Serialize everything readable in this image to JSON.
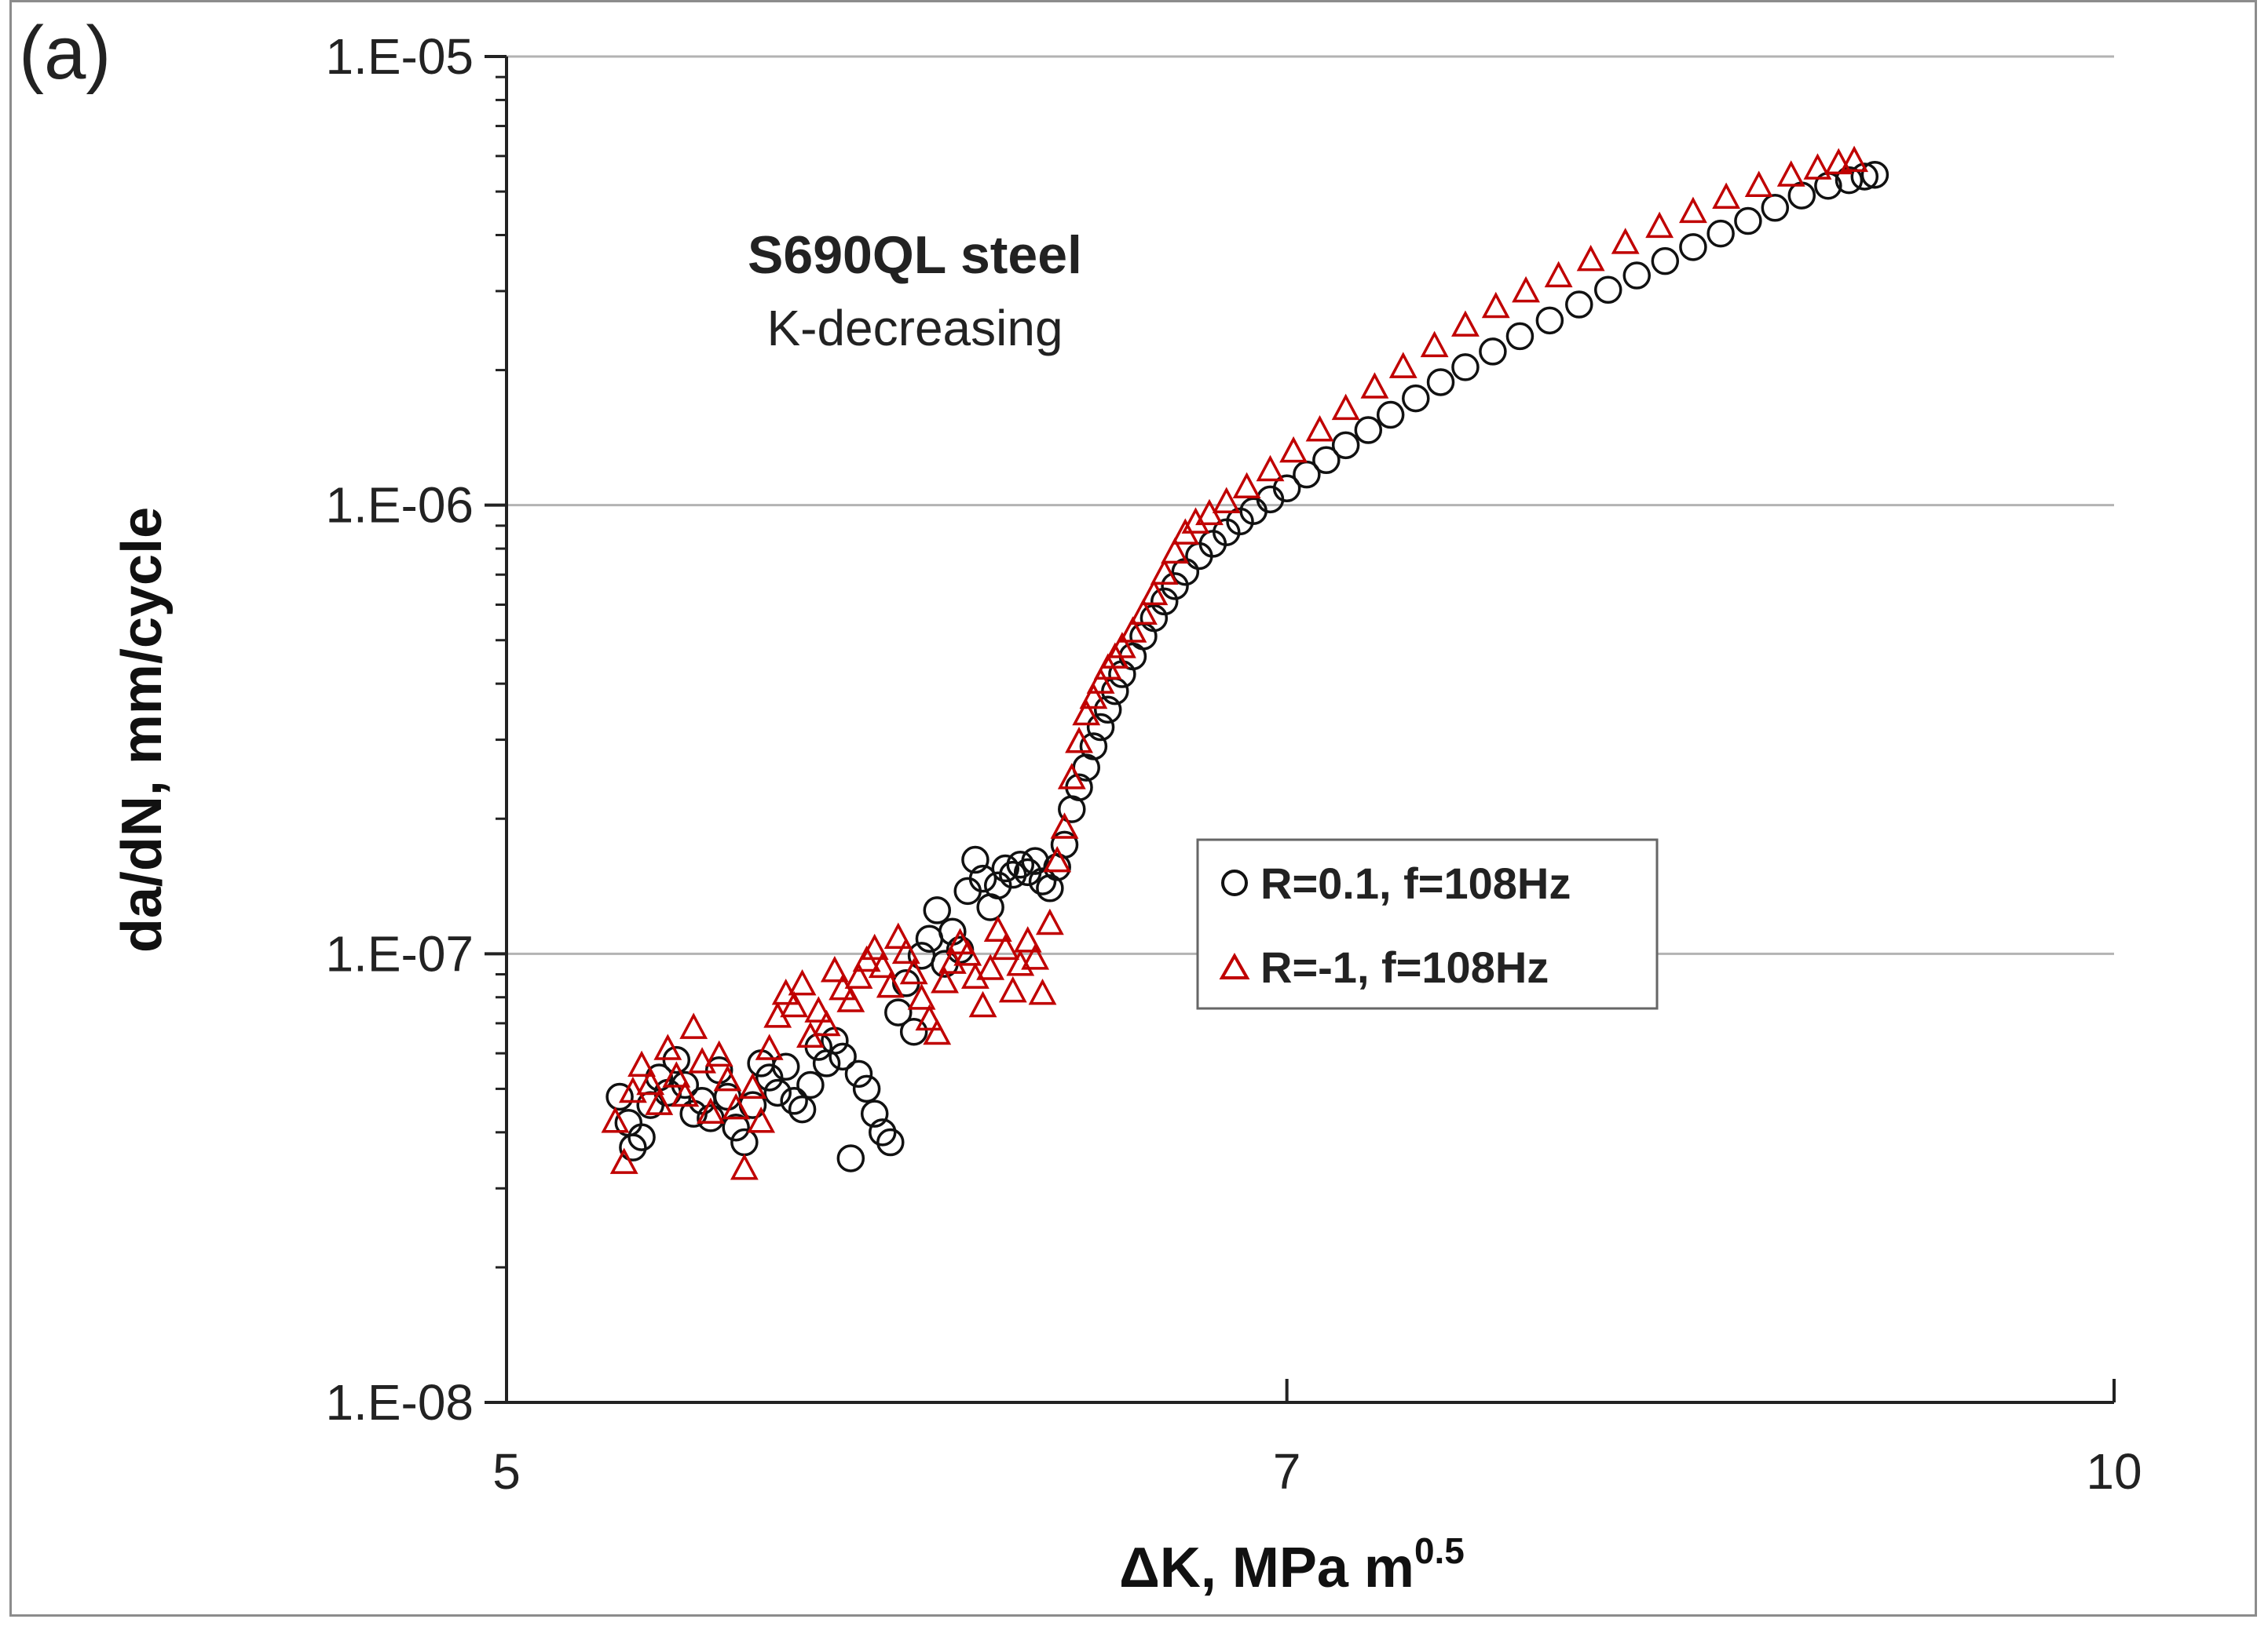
{
  "panel_label": "(a)",
  "annotation": {
    "title": "S690QL steel",
    "subtitle": "K-decreasing"
  },
  "colors": {
    "series1": "#111111",
    "series2": "#c00000",
    "grid": "#b3b3b3",
    "axis": "#222222"
  },
  "chart_data": {
    "type": "scatter",
    "title": "S690QL steel",
    "subtitle": "K-decreasing",
    "xlabel": "ΔK, MPa m",
    "xlabel_sup": "0.5",
    "ylabel": "da/dN, mm/cycle",
    "xscale": "log",
    "yscale": "log",
    "xlim": [
      5,
      10
    ],
    "ylim": [
      1e-08,
      1e-05
    ],
    "xticks": [
      5,
      7,
      10
    ],
    "xtick_labels": [
      "5",
      "7",
      "10"
    ],
    "yticks": [
      1e-08,
      1e-07,
      1e-06,
      1e-05
    ],
    "ytick_labels": [
      "1.E-08",
      "1.E-07",
      "1.E-06",
      "1.E-05"
    ],
    "grid": "horizontal major",
    "legend": {
      "position": "center-right",
      "entries": [
        "R=0.1, f=108Hz",
        "R=-1, f=108Hz"
      ]
    },
    "series": [
      {
        "name": "R=0.1, f=108Hz",
        "marker": "circle",
        "points": [
          [
            5.25,
            4.8e-08
          ],
          [
            5.27,
            4.2e-08
          ],
          [
            5.28,
            3.7e-08
          ],
          [
            5.3,
            3.9e-08
          ],
          [
            5.32,
            4.6e-08
          ],
          [
            5.34,
            5.3e-08
          ],
          [
            5.36,
            4.9e-08
          ],
          [
            5.38,
            5.8e-08
          ],
          [
            5.4,
            5.1e-08
          ],
          [
            5.42,
            4.4e-08
          ],
          [
            5.44,
            4.7e-08
          ],
          [
            5.46,
            4.3e-08
          ],
          [
            5.48,
            5.5e-08
          ],
          [
            5.5,
            4.8e-08
          ],
          [
            5.52,
            4.1e-08
          ],
          [
            5.54,
            3.8e-08
          ],
          [
            5.56,
            4.6e-08
          ],
          [
            5.58,
            5.7e-08
          ],
          [
            5.6,
            5.3e-08
          ],
          [
            5.62,
            4.9e-08
          ],
          [
            5.64,
            5.6e-08
          ],
          [
            5.66,
            4.7e-08
          ],
          [
            5.68,
            4.5e-08
          ],
          [
            5.7,
            5.1e-08
          ],
          [
            5.72,
            6.2e-08
          ],
          [
            5.74,
            5.7e-08
          ],
          [
            5.76,
            6.4e-08
          ],
          [
            5.78,
            5.9e-08
          ],
          [
            5.8,
            3.5e-08
          ],
          [
            5.82,
            5.4e-08
          ],
          [
            5.84,
            5e-08
          ],
          [
            5.86,
            4.4e-08
          ],
          [
            5.88,
            4e-08
          ],
          [
            5.9,
            3.8e-08
          ],
          [
            5.92,
            7.4e-08
          ],
          [
            5.94,
            8.6e-08
          ],
          [
            5.96,
            6.7e-08
          ],
          [
            5.98,
            9.9e-08
          ],
          [
            6.0,
            1.08e-07
          ],
          [
            6.02,
            1.25e-07
          ],
          [
            6.04,
            9.5e-08
          ],
          [
            6.06,
            1.12e-07
          ],
          [
            6.08,
            1.02e-07
          ],
          [
            6.1,
            1.38e-07
          ],
          [
            6.12,
            1.62e-07
          ],
          [
            6.14,
            1.47e-07
          ],
          [
            6.16,
            1.27e-07
          ],
          [
            6.18,
            1.42e-07
          ],
          [
            6.2,
            1.55e-07
          ],
          [
            6.22,
            1.5e-07
          ],
          [
            6.24,
            1.58e-07
          ],
          [
            6.26,
            1.52e-07
          ],
          [
            6.28,
            1.61e-07
          ],
          [
            6.3,
            1.45e-07
          ],
          [
            6.32,
            1.4e-07
          ],
          [
            6.34,
            1.56e-07
          ],
          [
            6.36,
            1.75e-07
          ],
          [
            6.38,
            2.1e-07
          ],
          [
            6.4,
            2.35e-07
          ],
          [
            6.42,
            2.6e-07
          ],
          [
            6.44,
            2.9e-07
          ],
          [
            6.46,
            3.2e-07
          ],
          [
            6.48,
            3.5e-07
          ],
          [
            6.5,
            3.85e-07
          ],
          [
            6.52,
            4.2e-07
          ],
          [
            6.55,
            4.6e-07
          ],
          [
            6.58,
            5.1e-07
          ],
          [
            6.61,
            5.6e-07
          ],
          [
            6.64,
            6.1e-07
          ],
          [
            6.67,
            6.6e-07
          ],
          [
            6.7,
            7.1e-07
          ],
          [
            6.74,
            7.7e-07
          ],
          [
            6.78,
            8.2e-07
          ],
          [
            6.82,
            8.7e-07
          ],
          [
            6.86,
            9.2e-07
          ],
          [
            6.9,
            9.7e-07
          ],
          [
            6.95,
            1.03e-06
          ],
          [
            7.0,
            1.09e-06
          ],
          [
            7.06,
            1.17e-06
          ],
          [
            7.12,
            1.26e-06
          ],
          [
            7.18,
            1.36e-06
          ],
          [
            7.25,
            1.47e-06
          ],
          [
            7.32,
            1.59e-06
          ],
          [
            7.4,
            1.73e-06
          ],
          [
            7.48,
            1.88e-06
          ],
          [
            7.56,
            2.03e-06
          ],
          [
            7.65,
            2.2e-06
          ],
          [
            7.74,
            2.38e-06
          ],
          [
            7.84,
            2.58e-06
          ],
          [
            7.94,
            2.8e-06
          ],
          [
            8.04,
            3.02e-06
          ],
          [
            8.14,
            3.25e-06
          ],
          [
            8.24,
            3.5e-06
          ],
          [
            8.34,
            3.76e-06
          ],
          [
            8.44,
            4.03e-06
          ],
          [
            8.54,
            4.3e-06
          ],
          [
            8.64,
            4.6e-06
          ],
          [
            8.74,
            4.9e-06
          ],
          [
            8.84,
            5.15e-06
          ],
          [
            8.92,
            5.3e-06
          ],
          [
            8.98,
            5.4e-06
          ],
          [
            9.02,
            5.45e-06
          ]
        ]
      },
      {
        "name": "R=-1, f=108Hz",
        "marker": "triangle",
        "points": [
          [
            5.24,
            4.2e-08
          ],
          [
            5.26,
            3.4e-08
          ],
          [
            5.28,
            4.9e-08
          ],
          [
            5.3,
            5.6e-08
          ],
          [
            5.32,
            5.1e-08
          ],
          [
            5.34,
            4.6e-08
          ],
          [
            5.36,
            6.1e-08
          ],
          [
            5.38,
            5.3e-08
          ],
          [
            5.4,
            4.8e-08
          ],
          [
            5.42,
            6.8e-08
          ],
          [
            5.44,
            5.7e-08
          ],
          [
            5.46,
            4.4e-08
          ],
          [
            5.48,
            5.9e-08
          ],
          [
            5.5,
            5.2e-08
          ],
          [
            5.52,
            4.5e-08
          ],
          [
            5.54,
            3.3e-08
          ],
          [
            5.56,
            5e-08
          ],
          [
            5.58,
            4.2e-08
          ],
          [
            5.6,
            6.1e-08
          ],
          [
            5.62,
            7.2e-08
          ],
          [
            5.64,
            8.1e-08
          ],
          [
            5.66,
            7.6e-08
          ],
          [
            5.68,
            8.5e-08
          ],
          [
            5.7,
            6.5e-08
          ],
          [
            5.72,
            7.4e-08
          ],
          [
            5.74,
            6.9e-08
          ],
          [
            5.76,
            9.1e-08
          ],
          [
            5.78,
            8.3e-08
          ],
          [
            5.8,
            7.8e-08
          ],
          [
            5.82,
            8.8e-08
          ],
          [
            5.84,
            9.6e-08
          ],
          [
            5.86,
            1.02e-07
          ],
          [
            5.88,
            9.3e-08
          ],
          [
            5.9,
            8.4e-08
          ],
          [
            5.92,
            1.08e-07
          ],
          [
            5.94,
            1e-07
          ],
          [
            5.96,
            9e-08
          ],
          [
            5.98,
            7.9e-08
          ],
          [
            6.0,
            7.1e-08
          ],
          [
            6.02,
            6.6e-08
          ],
          [
            6.04,
            8.6e-08
          ],
          [
            6.06,
            9.5e-08
          ],
          [
            6.08,
            1.05e-07
          ],
          [
            6.1,
            9.9e-08
          ],
          [
            6.12,
            8.8e-08
          ],
          [
            6.14,
            7.6e-08
          ],
          [
            6.16,
            9.2e-08
          ],
          [
            6.18,
            1.12e-07
          ],
          [
            6.2,
            1.02e-07
          ],
          [
            6.22,
            8.2e-08
          ],
          [
            6.24,
            9.4e-08
          ],
          [
            6.26,
            1.06e-07
          ],
          [
            6.28,
            9.7e-08
          ],
          [
            6.3,
            8.1e-08
          ],
          [
            6.32,
            1.16e-07
          ],
          [
            6.34,
            1.6e-07
          ],
          [
            6.36,
            1.9e-07
          ],
          [
            6.38,
            2.45e-07
          ],
          [
            6.4,
            2.95e-07
          ],
          [
            6.42,
            3.4e-07
          ],
          [
            6.44,
            3.7e-07
          ],
          [
            6.46,
            4e-07
          ],
          [
            6.48,
            4.3e-07
          ],
          [
            6.5,
            4.55e-07
          ],
          [
            6.52,
            4.8e-07
          ],
          [
            6.55,
            5.2e-07
          ],
          [
            6.58,
            5.7e-07
          ],
          [
            6.61,
            6.3e-07
          ],
          [
            6.64,
            7e-07
          ],
          [
            6.67,
            7.8e-07
          ],
          [
            6.7,
            8.6e-07
          ],
          [
            6.73,
            9.1e-07
          ],
          [
            6.77,
            9.5e-07
          ],
          [
            6.82,
            1.01e-06
          ],
          [
            6.88,
            1.09e-06
          ],
          [
            6.95,
            1.19e-06
          ],
          [
            7.02,
            1.31e-06
          ],
          [
            7.1,
            1.46e-06
          ],
          [
            7.18,
            1.63e-06
          ],
          [
            7.27,
            1.82e-06
          ],
          [
            7.36,
            2.02e-06
          ],
          [
            7.46,
            2.25e-06
          ],
          [
            7.56,
            2.5e-06
          ],
          [
            7.66,
            2.75e-06
          ],
          [
            7.76,
            2.98e-06
          ],
          [
            7.87,
            3.22e-06
          ],
          [
            7.98,
            3.5e-06
          ],
          [
            8.1,
            3.82e-06
          ],
          [
            8.22,
            4.15e-06
          ],
          [
            8.34,
            4.48e-06
          ],
          [
            8.46,
            4.82e-06
          ],
          [
            8.58,
            5.12e-06
          ],
          [
            8.7,
            5.4e-06
          ],
          [
            8.8,
            5.6e-06
          ],
          [
            8.88,
            5.75e-06
          ],
          [
            8.94,
            5.82e-06
          ]
        ]
      }
    ]
  }
}
